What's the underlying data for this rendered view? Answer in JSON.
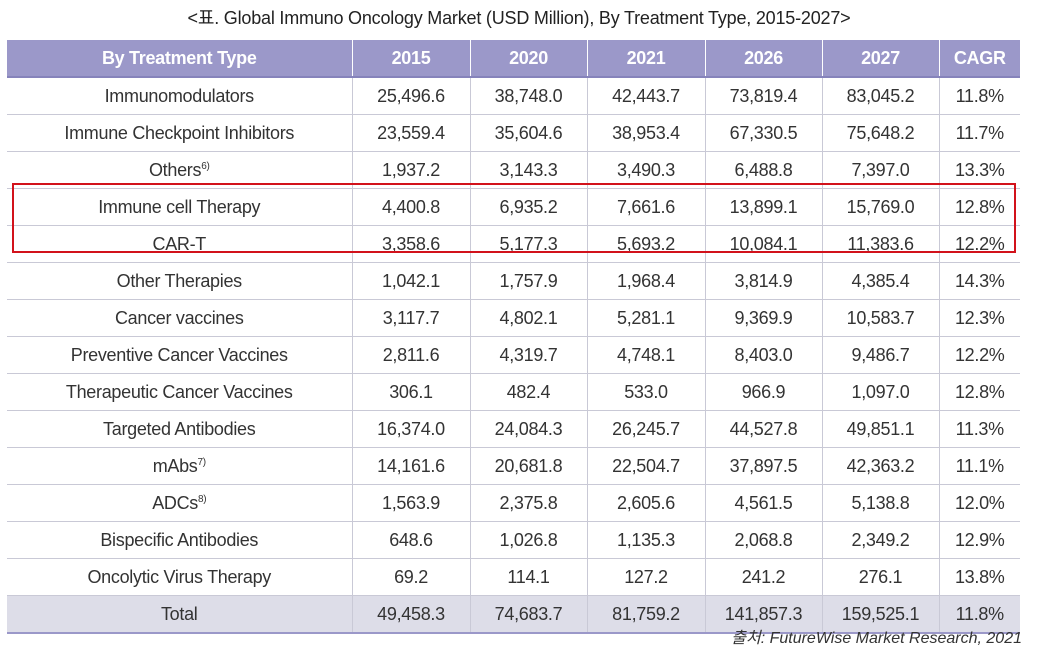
{
  "caption": "<표. Global Immuno Oncology Market (USD Million), By Treatment Type, 2015-2027>",
  "headers": [
    "By Treatment Type",
    "2015",
    "2020",
    "2021",
    "2026",
    "2027",
    "CAGR"
  ],
  "rows": [
    {
      "label": "Immunomodulators",
      "sup": "",
      "values": [
        "25,496.6",
        "38,748.0",
        "42,443.7",
        "73,819.4",
        "83,045.2",
        "11.8%"
      ]
    },
    {
      "label": "Immune Checkpoint Inhibitors",
      "sup": "",
      "values": [
        "23,559.4",
        "35,604.6",
        "38,953.4",
        "67,330.5",
        "75,648.2",
        "11.7%"
      ]
    },
    {
      "label": "Others",
      "sup": "6)",
      "values": [
        "1,937.2",
        "3,143.3",
        "3,490.3",
        "6,488.8",
        "7,397.0",
        "13.3%"
      ]
    },
    {
      "label": "Immune cell Therapy",
      "sup": "",
      "values": [
        "4,400.8",
        "6,935.2",
        "7,661.6",
        "13,899.1",
        "15,769.0",
        "12.8%"
      ]
    },
    {
      "label": "CAR-T",
      "sup": "",
      "values": [
        "3,358.6",
        "5,177.3",
        "5,693.2",
        "10,084.1",
        "11,383.6",
        "12.2%"
      ]
    },
    {
      "label": "Other Therapies",
      "sup": "",
      "values": [
        "1,042.1",
        "1,757.9",
        "1,968.4",
        "3,814.9",
        "4,385.4",
        "14.3%"
      ]
    },
    {
      "label": "Cancer vaccines",
      "sup": "",
      "values": [
        "3,117.7",
        "4,802.1",
        "5,281.1",
        "9,369.9",
        "10,583.7",
        "12.3%"
      ]
    },
    {
      "label": "Preventive Cancer Vaccines",
      "sup": "",
      "values": [
        "2,811.6",
        "4,319.7",
        "4,748.1",
        "8,403.0",
        "9,486.7",
        "12.2%"
      ]
    },
    {
      "label": "Therapeutic Cancer Vaccines",
      "sup": "",
      "values": [
        "306.1",
        "482.4",
        "533.0",
        "966.9",
        "1,097.0",
        "12.8%"
      ]
    },
    {
      "label": "Targeted Antibodies",
      "sup": "",
      "values": [
        "16,374.0",
        "24,084.3",
        "26,245.7",
        "44,527.8",
        "49,851.1",
        "11.3%"
      ]
    },
    {
      "label": "mAbs",
      "sup": "7)",
      "values": [
        "14,161.6",
        "20,681.8",
        "22,504.7",
        "37,897.5",
        "42,363.2",
        "11.1%"
      ]
    },
    {
      "label": "ADCs",
      "sup": "8)",
      "values": [
        "1,563.9",
        "2,375.8",
        "2,605.6",
        "4,561.5",
        "5,138.8",
        "12.0%"
      ]
    },
    {
      "label": "Bispecific Antibodies",
      "sup": "",
      "values": [
        "648.6",
        "1,026.8",
        "1,135.3",
        "2,068.8",
        "2,349.2",
        "12.9%"
      ]
    },
    {
      "label": "Oncolytic Virus Therapy",
      "sup": "",
      "values": [
        "69.2",
        "114.1",
        "127.2",
        "241.2",
        "276.1",
        "13.8%"
      ]
    }
  ],
  "total": {
    "label": "Total",
    "values": [
      "49,458.3",
      "74,683.7",
      "81,759.2",
      "141,857.3",
      "159,525.1",
      "11.8%"
    ]
  },
  "source": "출처: FutureWise Market Research, 2021",
  "colors": {
    "header_bg": "#9b98c9",
    "total_bg": "#dddde8",
    "highlight_border": "#d2121b"
  }
}
